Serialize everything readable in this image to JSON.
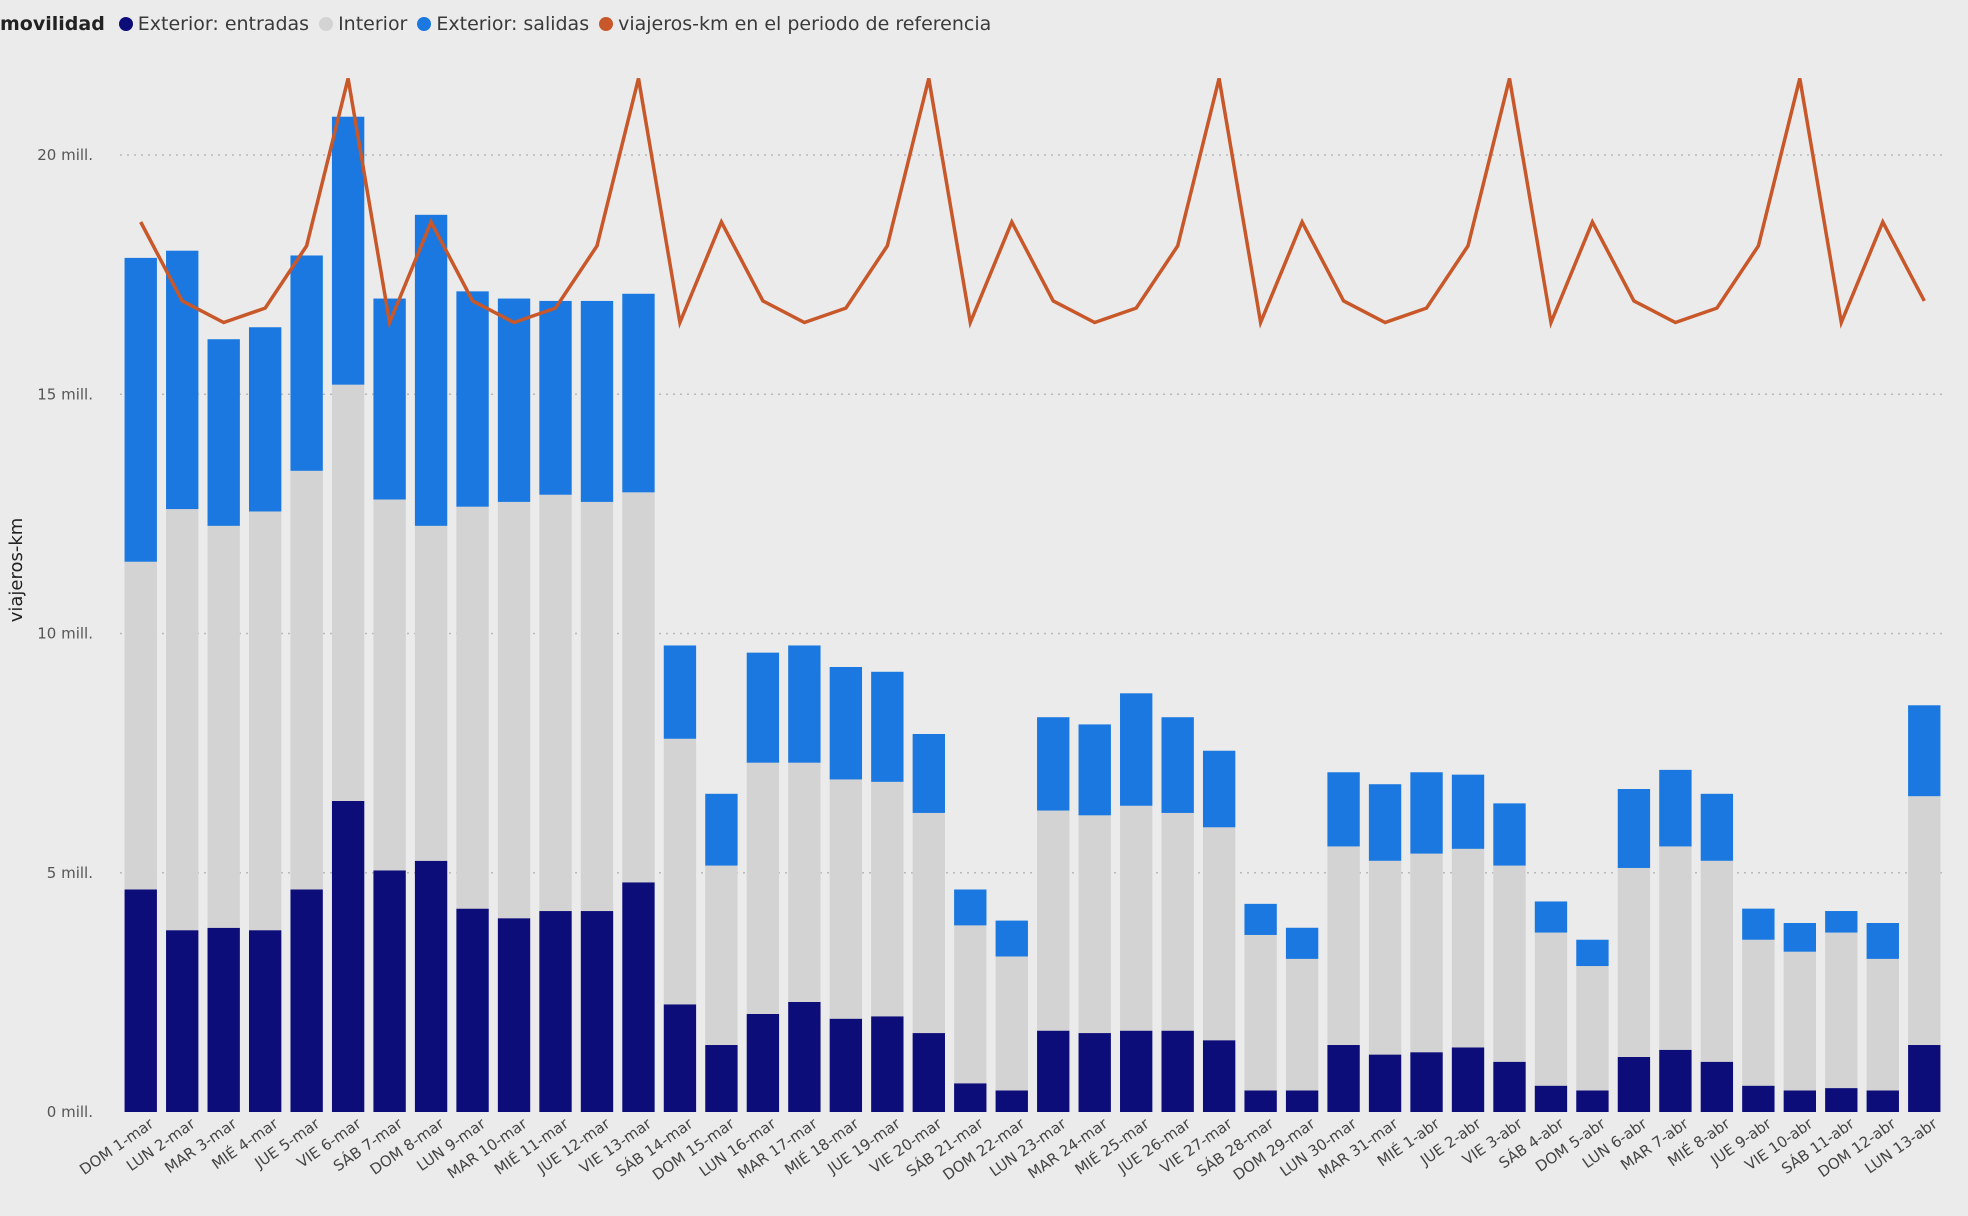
{
  "chart_data": {
    "type": "bar",
    "stacked": true,
    "legend_title": "movilidad",
    "ylabel": "viajeros-km",
    "ylim": [
      0,
      21.5
    ],
    "yticks": [
      0,
      5,
      10,
      15,
      20
    ],
    "ytick_labels": [
      "0 mill.",
      "5 mill.",
      "10 mill.",
      "15 mill.",
      "20 mill."
    ],
    "categories": [
      "DOM 1-mar",
      "LUN 2-mar",
      "MAR 3-mar",
      "MIÉ 4-mar",
      "JUE 5-mar",
      "VIE 6-mar",
      "SÁB 7-mar",
      "DOM 8-mar",
      "LUN 9-mar",
      "MAR 10-mar",
      "MIÉ 11-mar",
      "JUE 12-mar",
      "VIE 13-mar",
      "SÁB 14-mar",
      "DOM 15-mar",
      "LUN 16-mar",
      "MAR 17-mar",
      "MIÉ 18-mar",
      "JUE 19-mar",
      "VIE 20-mar",
      "SÁB 21-mar",
      "DOM 22-mar",
      "LUN 23-mar",
      "MAR 24-mar",
      "MIÉ 25-mar",
      "JUE 26-mar",
      "VIE 27-mar",
      "SÁB 28-mar",
      "DOM 29-mar",
      "LUN 30-mar",
      "MAR 31-mar",
      "MIÉ 1-abr",
      "JUE 2-abr",
      "VIE 3-abr",
      "SÁB 4-abr",
      "DOM 5-abr",
      "LUN 6-abr",
      "MAR 7-abr",
      "MIÉ 8-abr",
      "JUE 9-abr",
      "VIE 10-abr",
      "SÁB 11-abr",
      "DOM 12-abr",
      "LUN 13-abr"
    ],
    "series": [
      {
        "name": "Exterior: entradas",
        "color": "#0d0d7a",
        "values": [
          4.65,
          3.8,
          3.85,
          3.8,
          4.65,
          6.5,
          5.05,
          5.25,
          4.25,
          4.05,
          4.2,
          4.2,
          4.8,
          2.25,
          1.4,
          2.05,
          2.3,
          1.95,
          2.0,
          1.65,
          0.6,
          0.45,
          1.7,
          1.65,
          1.7,
          1.7,
          1.5,
          0.45,
          0.45,
          1.4,
          1.2,
          1.25,
          1.35,
          1.05,
          0.55,
          0.45,
          1.15,
          1.3,
          1.05,
          0.55,
          0.45,
          0.5,
          0.45,
          1.4
        ]
      },
      {
        "name": "Interior",
        "color": "#d3d3d3",
        "values": [
          6.85,
          8.8,
          8.4,
          8.75,
          8.75,
          8.7,
          7.75,
          7.0,
          8.4,
          8.7,
          8.7,
          8.55,
          8.15,
          5.55,
          3.75,
          5.25,
          5.0,
          5.0,
          4.9,
          4.6,
          3.3,
          2.8,
          4.6,
          4.55,
          4.7,
          4.55,
          4.45,
          3.25,
          2.75,
          4.15,
          4.05,
          4.15,
          4.15,
          4.1,
          3.2,
          2.6,
          3.95,
          4.25,
          4.2,
          3.05,
          2.9,
          3.25,
          2.75,
          5.2
        ]
      },
      {
        "name": "Exterior: salidas",
        "color": "#1a78e0",
        "values": [
          6.35,
          5.4,
          3.9,
          3.85,
          4.5,
          5.6,
          4.2,
          6.5,
          4.5,
          4.25,
          4.05,
          4.2,
          4.15,
          1.95,
          1.5,
          2.3,
          2.45,
          2.35,
          2.3,
          1.65,
          0.75,
          0.75,
          1.95,
          1.9,
          2.35,
          2.0,
          1.6,
          0.65,
          0.65,
          1.55,
          1.6,
          1.7,
          1.55,
          1.3,
          0.65,
          0.55,
          1.65,
          1.6,
          1.4,
          0.65,
          0.6,
          0.45,
          0.75,
          1.9
        ]
      }
    ],
    "line": {
      "name": "viajeros-km en el periodo de referencia",
      "color": "#c8582a",
      "values": [
        18.6,
        16.95,
        16.5,
        16.8,
        18.1,
        21.6,
        16.5,
        18.6,
        16.95,
        16.5,
        16.8,
        18.1,
        21.6,
        16.5,
        18.6,
        16.95,
        16.5,
        16.8,
        18.1,
        21.6,
        16.5,
        18.6,
        16.95,
        16.5,
        16.8,
        18.1,
        21.6,
        16.5,
        18.6,
        16.95,
        16.5,
        16.8,
        18.1,
        21.6,
        16.5,
        18.6,
        16.95,
        16.5,
        16.8,
        18.1,
        21.6,
        16.5,
        18.6,
        16.95
      ]
    }
  }
}
